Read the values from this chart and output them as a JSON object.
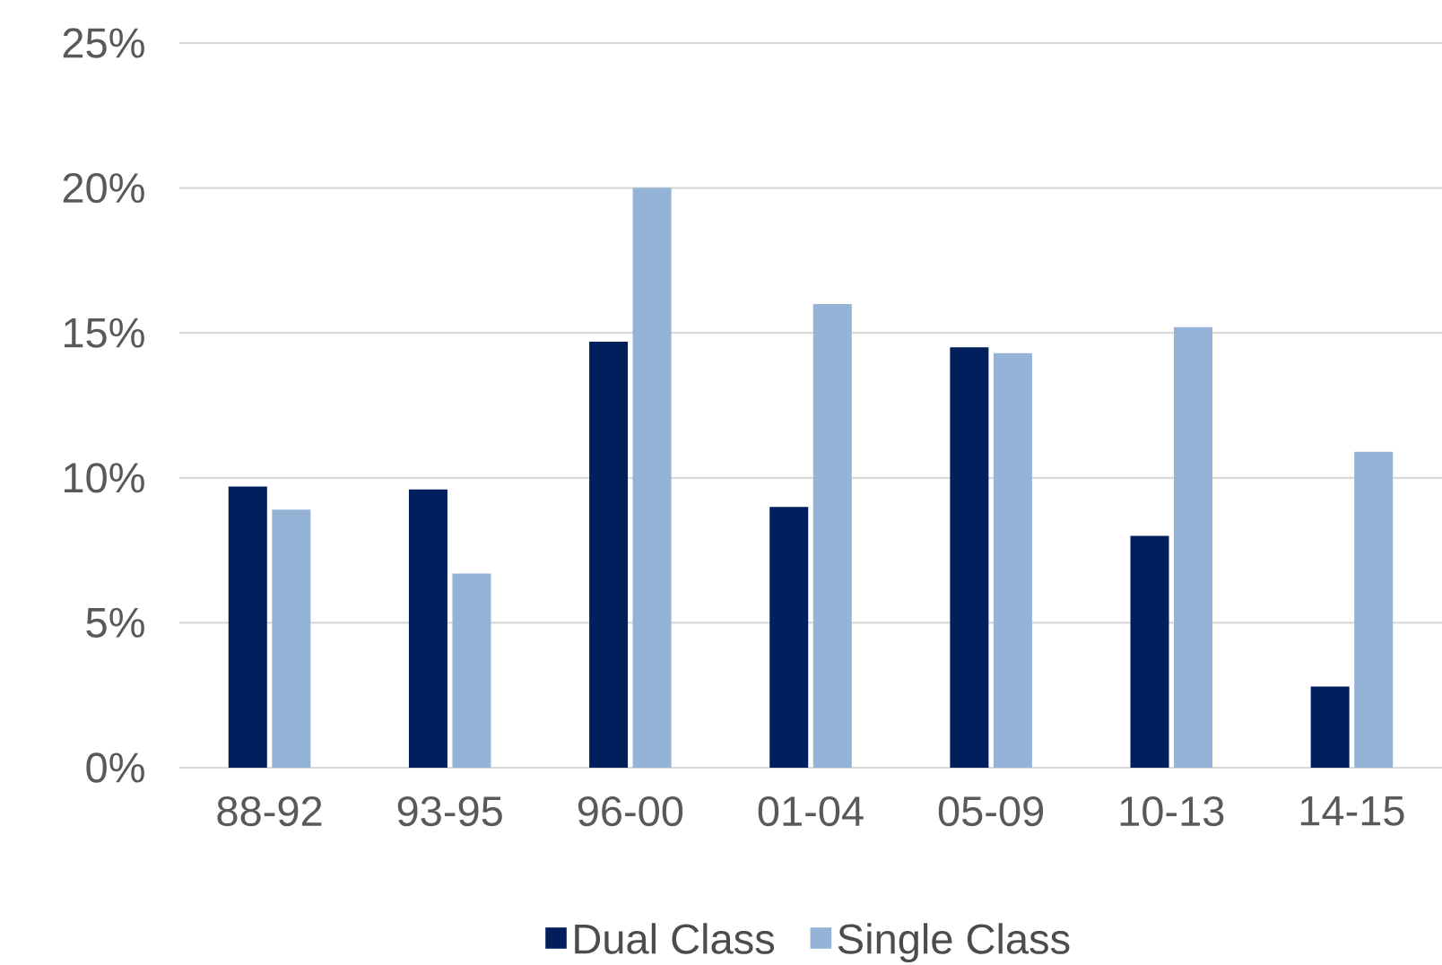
{
  "chart_data": {
    "type": "bar",
    "categories": [
      "88-92",
      "93-95",
      "96-00",
      "01-04",
      "05-09",
      "10-13",
      "14-15"
    ],
    "series": [
      {
        "name": "Dual Class",
        "color": "#001f5c",
        "values": [
          9.7,
          9.6,
          14.7,
          9.0,
          14.5,
          8.0,
          2.8
        ]
      },
      {
        "name": "Single Class",
        "color": "#95b3d7",
        "values": [
          8.9,
          6.7,
          20.0,
          16.0,
          14.3,
          15.2,
          10.9
        ]
      }
    ],
    "ylim": [
      0,
      25
    ],
    "yticks": [
      {
        "value": 0,
        "label": "0%"
      },
      {
        "value": 5,
        "label": "5%"
      },
      {
        "value": 10,
        "label": "10%"
      },
      {
        "value": 15,
        "label": "15%"
      },
      {
        "value": 20,
        "label": "20%"
      },
      {
        "value": 25,
        "label": "25%"
      }
    ],
    "grid": "y",
    "legend": "bottom"
  }
}
